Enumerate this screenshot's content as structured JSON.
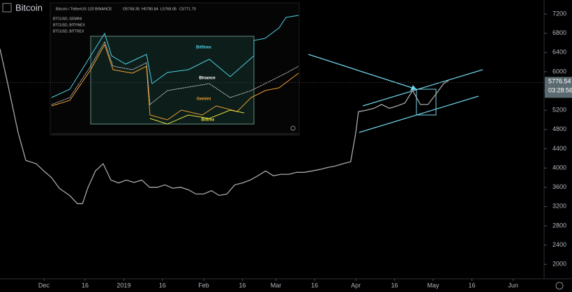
{
  "chart_data": {
    "type": "line",
    "title": "Bitcoin",
    "symbol_info": "Bitcoin / TetherUS 120 BINANCE",
    "ohlc_labels": [
      "O5768.35",
      "H5780.84",
      "L5768.05",
      "C5771.70"
    ],
    "inset_legend": [
      "BTCUSD, GEMINI",
      "BTCUSD, BITFINEX",
      "BTCUSD, BITTREX"
    ],
    "inset_labels": [
      "Bitfinex",
      "Binance",
      "Gemini",
      "Bittrex"
    ],
    "last_price": 5776.54,
    "countdown": "03:28:56",
    "color": "#a8a8a8",
    "x": [
      -17,
      -14,
      -10,
      -7,
      -3,
      0,
      3,
      6,
      10,
      13,
      15,
      17,
      20,
      23,
      26,
      29,
      32,
      35,
      38,
      41,
      44,
      47,
      50,
      53,
      56,
      59,
      62,
      65,
      68,
      71,
      74,
      77,
      80,
      83,
      86,
      89,
      92,
      95,
      98,
      101,
      104,
      107,
      110,
      113,
      116,
      119,
      121,
      122,
      125,
      128,
      131,
      134,
      137,
      140,
      143,
      146,
      149,
      152,
      155,
      157
    ],
    "values": [
      6475,
      5750,
      4740,
      4160,
      4090,
      3940,
      3800,
      3580,
      3430,
      3260,
      3260,
      3580,
      3940,
      4090,
      3750,
      3690,
      3750,
      3700,
      3750,
      3600,
      3600,
      3650,
      3580,
      3600,
      3550,
      3460,
      3460,
      3530,
      3430,
      3460,
      3650,
      3690,
      3750,
      3840,
      3940,
      3840,
      3870,
      3870,
      3910,
      3910,
      3940,
      3970,
      4010,
      4040,
      4090,
      4130,
      4740,
      5170,
      5200,
      5240,
      5320,
      5240,
      5290,
      5350,
      5610,
      5320,
      5320,
      5530,
      5750,
      5820
    ],
    "xlim": [
      -17,
      194
    ],
    "xticks": [
      {
        "value": 0,
        "label": "Dec"
      },
      16,
      {
        "value": 31,
        "label": "2019"
      },
      {
        "value": 46,
        "label": "16"
      },
      {
        "value": 62,
        "label": "Feb"
      },
      {
        "value": 77,
        "label": "16"
      },
      {
        "value": 90,
        "label": "Mar"
      },
      {
        "value": 105,
        "label": "16"
      },
      {
        "value": 121,
        "label": "Apr"
      },
      {
        "value": 136,
        "label": "16"
      },
      {
        "value": 151,
        "label": "May"
      },
      {
        "value": 166,
        "label": "16"
      },
      {
        "value": 182,
        "label": "Jun"
      }
    ],
    "ylim": [
      1700,
      7490
    ],
    "yticks": [
      2000,
      2400,
      2800,
      3200,
      3600,
      4000,
      4400,
      4800,
      5200,
      5600,
      6000,
      6400,
      6800,
      7200
    ]
  }
}
